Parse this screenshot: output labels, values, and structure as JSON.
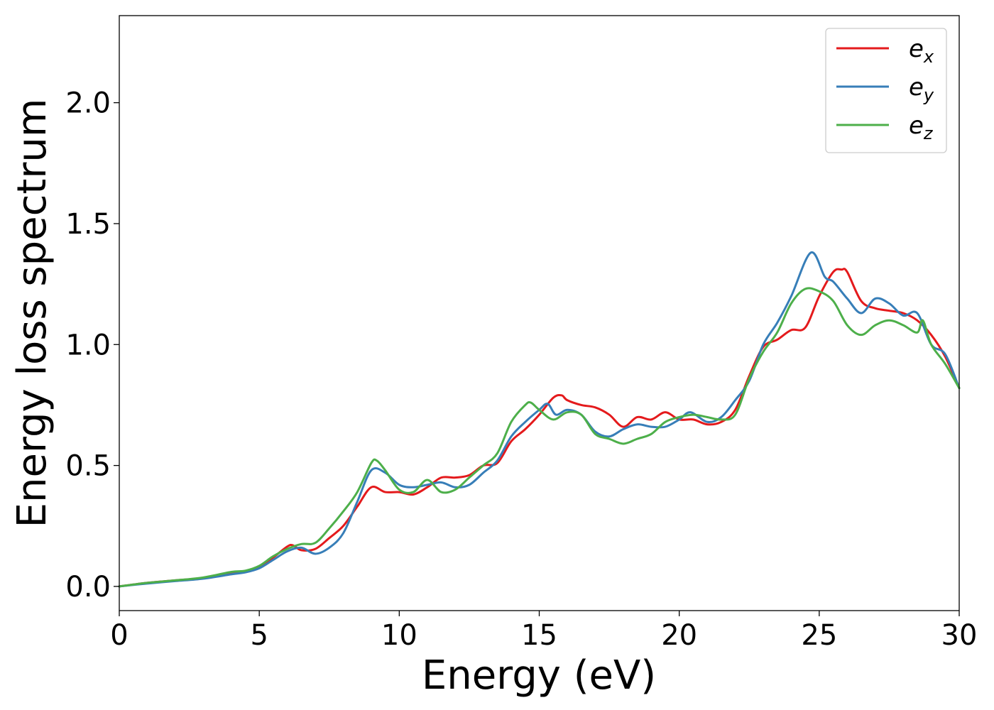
{
  "chart_data": {
    "type": "line",
    "xlabel": "Energy (eV)",
    "ylabel": "Energy loss spectrum",
    "xlim": [
      0,
      30
    ],
    "ylim": [
      -0.1,
      2.36
    ],
    "xticks": [
      0,
      5,
      10,
      15,
      20,
      25,
      30
    ],
    "xtick_labels": [
      "0",
      "5",
      "10",
      "15",
      "20",
      "25",
      "30"
    ],
    "yticks": [
      0.0,
      0.5,
      1.0,
      1.5,
      2.0
    ],
    "ytick_labels": [
      "0.0",
      "0.5",
      "1.0",
      "1.5",
      "2.0"
    ],
    "grid": false,
    "legend_position": "top-right",
    "series": [
      {
        "name": "e_x",
        "label_base": "e",
        "label_sub": "x",
        "color": "#e41a1c",
        "x": [
          0,
          1,
          2,
          3,
          4,
          4.5,
          5,
          5.5,
          6,
          6.2,
          6.5,
          7,
          7.5,
          8,
          8.5,
          9,
          9.5,
          10,
          10.5,
          11,
          11.5,
          12,
          12.5,
          13,
          13.5,
          14,
          14.5,
          15,
          15.5,
          15.8,
          16,
          16.5,
          17,
          17.5,
          18,
          18.5,
          19,
          19.5,
          20,
          20.5,
          21,
          21.5,
          22,
          22.5,
          23,
          23.5,
          24,
          24.5,
          25,
          25.5,
          25.8,
          26,
          26.5,
          27,
          27.5,
          28,
          28.5,
          29,
          29.5,
          30
        ],
        "y": [
          0.0,
          0.015,
          0.025,
          0.035,
          0.055,
          0.06,
          0.08,
          0.12,
          0.165,
          0.17,
          0.15,
          0.155,
          0.2,
          0.25,
          0.33,
          0.41,
          0.39,
          0.39,
          0.38,
          0.41,
          0.45,
          0.45,
          0.46,
          0.5,
          0.51,
          0.6,
          0.65,
          0.71,
          0.78,
          0.79,
          0.77,
          0.75,
          0.74,
          0.71,
          0.66,
          0.7,
          0.69,
          0.72,
          0.69,
          0.69,
          0.67,
          0.68,
          0.73,
          0.87,
          0.99,
          1.02,
          1.06,
          1.07,
          1.2,
          1.3,
          1.31,
          1.3,
          1.18,
          1.15,
          1.14,
          1.13,
          1.1,
          1.04,
          0.95,
          0.82
        ]
      },
      {
        "name": "e_y",
        "label_base": "e",
        "label_sub": "y",
        "color": "#377eb8",
        "x": [
          0,
          1,
          2,
          3,
          4,
          4.5,
          5,
          5.5,
          6,
          6.5,
          7,
          7.5,
          8,
          8.5,
          9,
          9.5,
          10,
          10.5,
          11,
          11.5,
          12,
          12.5,
          13,
          13.5,
          14,
          14.5,
          15,
          15.3,
          15.6,
          16,
          16.5,
          17,
          17.5,
          18,
          18.5,
          19,
          19.5,
          20,
          20.4,
          21,
          21.5,
          22,
          22.5,
          23,
          23.5,
          24,
          24.7,
          25.2,
          25.5,
          26,
          26.5,
          27,
          27.5,
          28,
          28.5,
          29,
          29.5,
          30
        ],
        "y": [
          0.0,
          0.012,
          0.022,
          0.032,
          0.05,
          0.058,
          0.075,
          0.11,
          0.145,
          0.16,
          0.135,
          0.16,
          0.22,
          0.35,
          0.48,
          0.47,
          0.42,
          0.41,
          0.42,
          0.43,
          0.41,
          0.42,
          0.47,
          0.52,
          0.62,
          0.68,
          0.73,
          0.755,
          0.71,
          0.73,
          0.71,
          0.64,
          0.62,
          0.65,
          0.67,
          0.66,
          0.66,
          0.69,
          0.72,
          0.68,
          0.7,
          0.77,
          0.85,
          1.0,
          1.09,
          1.2,
          1.38,
          1.28,
          1.26,
          1.19,
          1.13,
          1.19,
          1.17,
          1.12,
          1.13,
          1.0,
          0.96,
          0.82
        ]
      },
      {
        "name": "e_z",
        "label_base": "e",
        "label_sub": "z",
        "color": "#4daf4a",
        "x": [
          0,
          1,
          2,
          3,
          4,
          4.5,
          5,
          5.5,
          6,
          6.5,
          7,
          7.5,
          8,
          8.5,
          9,
          9.2,
          9.5,
          10,
          10.5,
          11,
          11.5,
          12,
          12.5,
          13,
          13.5,
          14,
          14.5,
          14.7,
          15,
          15.5,
          16,
          16.5,
          17,
          17.5,
          18,
          18.5,
          19,
          19.5,
          20,
          20.5,
          21,
          21.5,
          22,
          22.5,
          23,
          23.5,
          24,
          24.5,
          25,
          25.5,
          26,
          26.5,
          27,
          27.5,
          28,
          28.5,
          28.7,
          29,
          29.5,
          30
        ],
        "y": [
          0.0,
          0.015,
          0.025,
          0.037,
          0.06,
          0.065,
          0.085,
          0.125,
          0.155,
          0.175,
          0.18,
          0.24,
          0.31,
          0.39,
          0.51,
          0.52,
          0.48,
          0.4,
          0.39,
          0.44,
          0.39,
          0.4,
          0.45,
          0.5,
          0.55,
          0.68,
          0.75,
          0.76,
          0.73,
          0.69,
          0.72,
          0.71,
          0.63,
          0.61,
          0.59,
          0.61,
          0.63,
          0.68,
          0.7,
          0.71,
          0.7,
          0.69,
          0.71,
          0.86,
          0.97,
          1.05,
          1.17,
          1.23,
          1.22,
          1.18,
          1.08,
          1.04,
          1.08,
          1.1,
          1.08,
          1.05,
          1.1,
          1.0,
          0.92,
          0.82
        ]
      }
    ]
  }
}
